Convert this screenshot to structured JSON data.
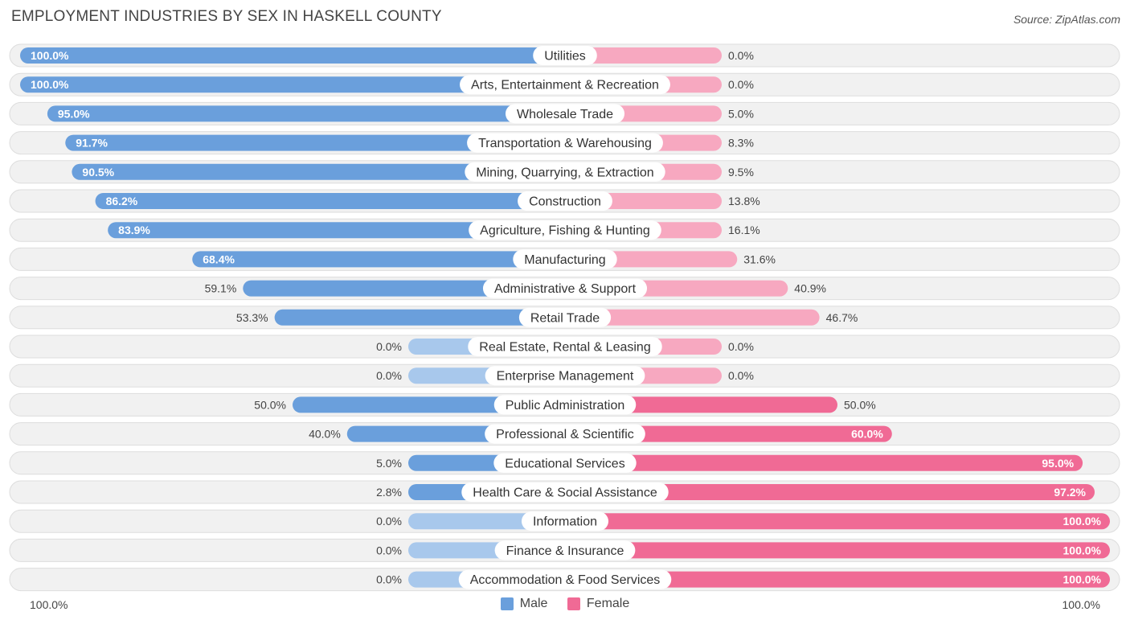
{
  "header": {
    "title": "EMPLOYMENT INDUSTRIES BY SEX IN HASKELL COUNTY",
    "source": "Source: ZipAtlas.com"
  },
  "axis": {
    "left_label": "100.0%",
    "right_label": "100.0%"
  },
  "legend": {
    "male_label": "Male",
    "female_label": "Female"
  },
  "colors": {
    "male_strong": "#6a9fdc",
    "male_light": "#a8c8ec",
    "female_strong": "#f06a95",
    "female_light": "#f7a8c0",
    "row_bg": "#f1f1f1",
    "row_border": "#dddddd"
  },
  "chart_data": {
    "type": "bar",
    "orientation": "horizontal-diverging",
    "title": "EMPLOYMENT INDUSTRIES BY SEX IN HASKELL COUNTY",
    "xlim": [
      -100,
      100
    ],
    "series_names": [
      "Male",
      "Female"
    ],
    "categories": [
      "Utilities",
      "Arts, Entertainment & Recreation",
      "Wholesale Trade",
      "Transportation & Warehousing",
      "Mining, Quarrying, & Extraction",
      "Construction",
      "Agriculture, Fishing & Hunting",
      "Manufacturing",
      "Administrative & Support",
      "Retail Trade",
      "Real Estate, Rental & Leasing",
      "Enterprise Management",
      "Public Administration",
      "Professional & Scientific",
      "Educational Services",
      "Health Care & Social Assistance",
      "Information",
      "Finance & Insurance",
      "Accommodation & Food Services"
    ],
    "male": [
      100.0,
      100.0,
      95.0,
      91.7,
      90.5,
      86.2,
      83.9,
      68.4,
      59.1,
      53.3,
      0.0,
      0.0,
      50.0,
      40.0,
      5.0,
      2.8,
      0.0,
      0.0,
      0.0
    ],
    "female": [
      0.0,
      0.0,
      5.0,
      8.3,
      9.5,
      13.8,
      16.1,
      31.6,
      40.9,
      46.7,
      0.0,
      0.0,
      50.0,
      60.0,
      95.0,
      97.2,
      100.0,
      100.0,
      100.0
    ],
    "male_labels": [
      "100.0%",
      "100.0%",
      "95.0%",
      "91.7%",
      "90.5%",
      "86.2%",
      "83.9%",
      "68.4%",
      "59.1%",
      "53.3%",
      "0.0%",
      "0.0%",
      "50.0%",
      "40.0%",
      "5.0%",
      "2.8%",
      "0.0%",
      "0.0%",
      "0.0%"
    ],
    "female_labels": [
      "0.0%",
      "0.0%",
      "5.0%",
      "8.3%",
      "9.5%",
      "13.8%",
      "16.1%",
      "31.6%",
      "40.9%",
      "46.7%",
      "0.0%",
      "0.0%",
      "50.0%",
      "60.0%",
      "95.0%",
      "97.2%",
      "100.0%",
      "100.0%",
      "100.0%"
    ]
  }
}
